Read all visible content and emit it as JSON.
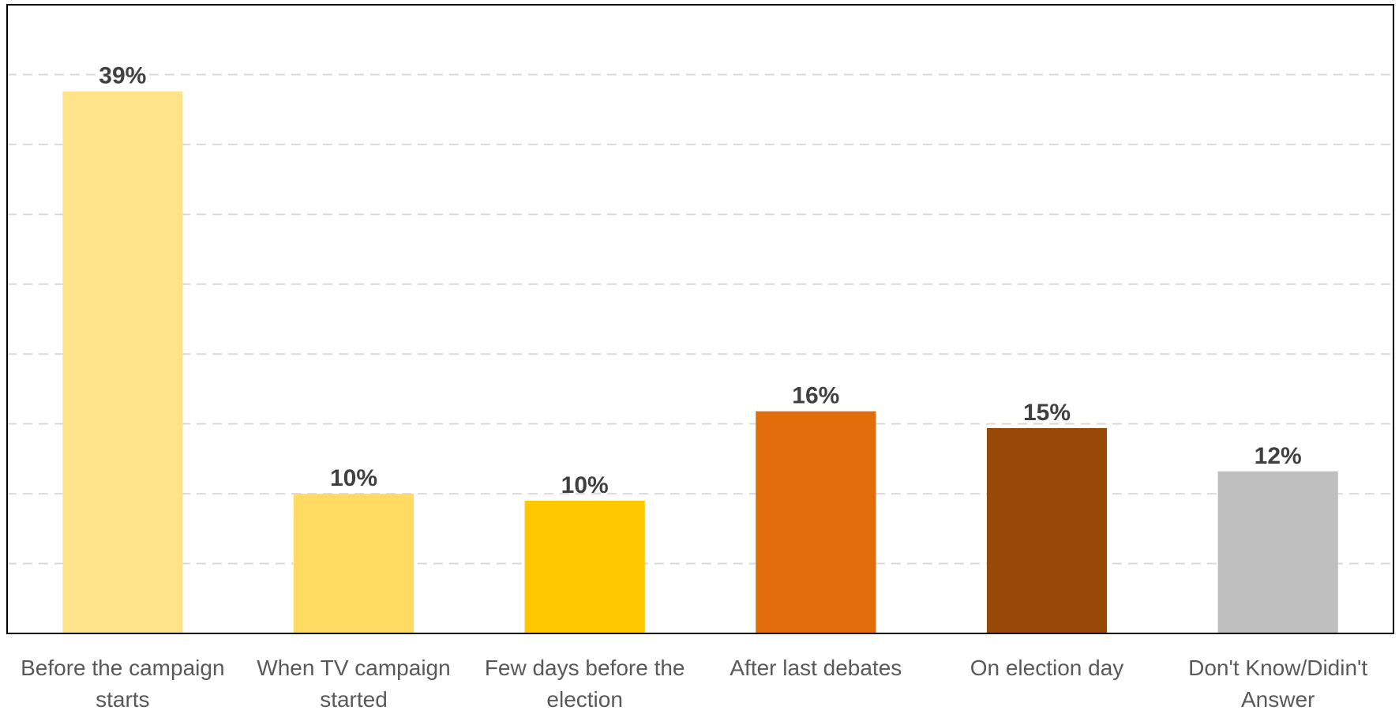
{
  "chart_data": {
    "type": "bar",
    "title": "",
    "xlabel": "",
    "ylabel": "",
    "ylim": [
      0,
      45
    ],
    "grid": true,
    "legend": "none",
    "categories": [
      [
        "Before the campaign",
        "starts"
      ],
      [
        "When TV campaign",
        "started"
      ],
      [
        "Few days before the",
        "election"
      ],
      [
        "After last debates"
      ],
      [
        "On election day"
      ],
      [
        "Don't Know/Didin't",
        "Answer"
      ]
    ],
    "values": [
      39,
      10,
      10,
      16,
      15,
      12
    ],
    "bar_heights": [
      38.8,
      10.0,
      9.5,
      15.9,
      14.7,
      11.6
    ],
    "value_labels": [
      "39%",
      "10%",
      "10%",
      "16%",
      "15%",
      "12%"
    ],
    "colors": [
      "#FFE38A",
      "#FFDB63",
      "#FFC800",
      "#E36C0A",
      "#984807",
      "#BFBFBF"
    ]
  }
}
